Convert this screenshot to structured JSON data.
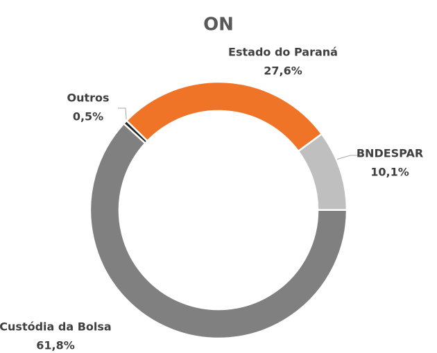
{
  "chart_data": {
    "type": "donut",
    "title": "ON",
    "categories": [
      "Estado do Paraná",
      "BNDESPAR",
      "Custódia da Bolsa",
      "Outros"
    ],
    "values": [
      27.6,
      10.1,
      61.8,
      0.5
    ],
    "value_labels": [
      "27,6%",
      "10,1%",
      "61,8%",
      "0,5%"
    ],
    "colors": [
      "#f07427",
      "#bfbfbf",
      "#808080",
      "#262626"
    ]
  }
}
